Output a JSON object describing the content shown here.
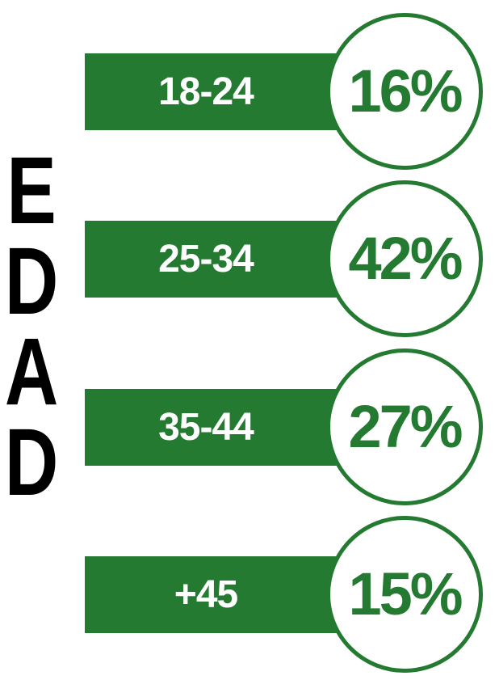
{
  "title": "EDAD",
  "categories": [
    "18-24",
    "25-34",
    "35-44",
    "+45"
  ],
  "values": [
    16,
    42,
    27,
    15
  ],
  "value_labels": [
    "16%",
    "42%",
    "27%",
    "15%"
  ]
}
